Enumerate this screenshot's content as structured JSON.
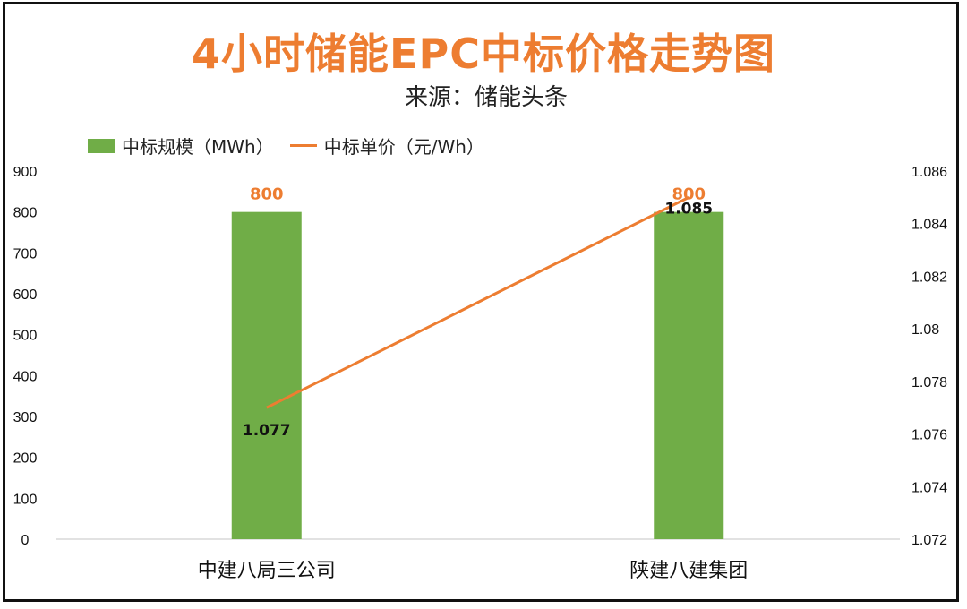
{
  "title": "4小时储能EPC中标价格走势图",
  "subtitle": "来源：储能头条",
  "legend": {
    "bar_label": "中标规模（MWh）",
    "line_label": "中标单价（元/Wh）"
  },
  "colors": {
    "bar": "#70ad47",
    "line": "#ed7d31",
    "bar_label": "#ed7d31",
    "axis": "#d9d9d9"
  },
  "chart_data": {
    "type": "bar",
    "categories": [
      "中建八局三公司",
      "陕建八建集团"
    ],
    "series": [
      {
        "name": "中标规模（MWh）",
        "type": "bar",
        "axis": "left",
        "values": [
          800,
          800
        ]
      },
      {
        "name": "中标单价（元/Wh）",
        "type": "line",
        "axis": "right",
        "values": [
          1.077,
          1.085
        ]
      }
    ],
    "left_axis": {
      "min": 0,
      "max": 900,
      "ticks": [
        "0",
        "100",
        "200",
        "300",
        "400",
        "500",
        "600",
        "700",
        "800",
        "900"
      ]
    },
    "right_axis": {
      "min": 1.072,
      "max": 1.086,
      "ticks": [
        "1.072",
        "1.074",
        "1.076",
        "1.078",
        "1.08",
        "1.082",
        "1.084",
        "1.086"
      ]
    },
    "bar_data_labels": [
      "800",
      "800"
    ],
    "line_data_labels": [
      "1.077",
      "1.085"
    ],
    "grid": false,
    "legend_position": "top-left"
  }
}
